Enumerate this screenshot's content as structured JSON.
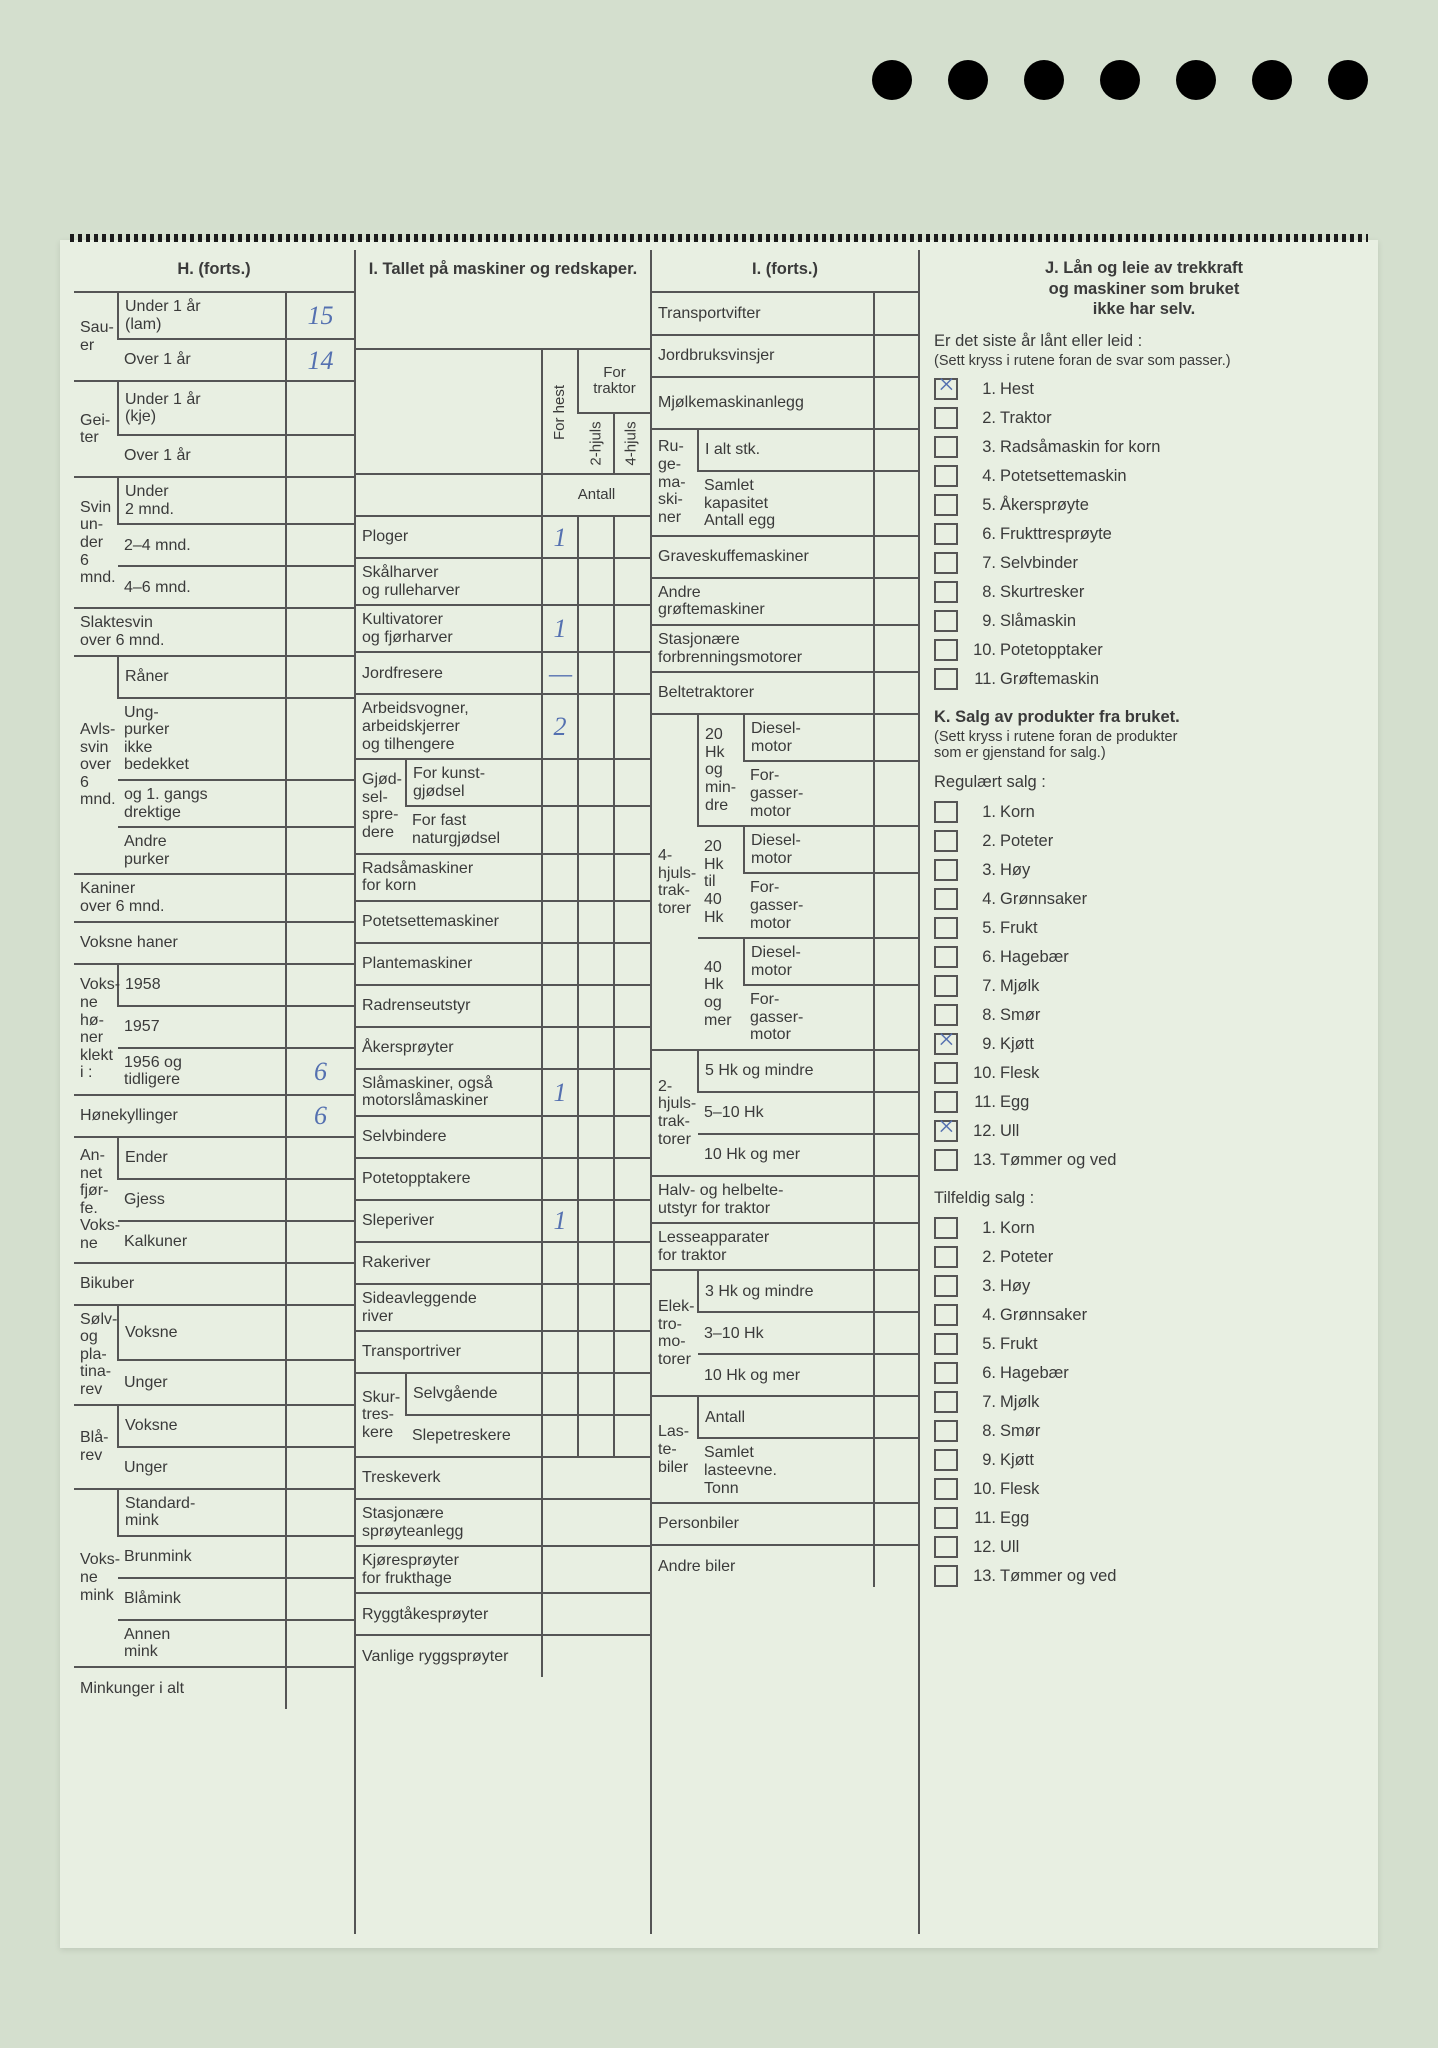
{
  "punch_holes": 7,
  "colors": {
    "page_bg": "#d4dfce",
    "sheet_bg": "#e8efe2",
    "line": "#555555",
    "text": "#3a3a3a",
    "handwriting": "#5470b0"
  },
  "H": {
    "title": "H. (forts.)",
    "sauer": {
      "label": "Sau-\ner",
      "under1": {
        "label": "Under 1 år\n(lam)",
        "val": "15"
      },
      "over1": {
        "label": "Over 1 år",
        "val": "14"
      }
    },
    "geiter": {
      "label": "Gei-\nter",
      "under1": "Under 1 år\n(kje)",
      "over1": "Over 1 år"
    },
    "svin": {
      "label": "Svin\nun-\nder\n6\nmnd.",
      "u2": "Under\n2 mnd.",
      "m24": "2–4 mnd.",
      "m46": "4–6 mnd."
    },
    "slaktesvin": "Slaktesvin\nover 6 mnd.",
    "avlssvin": {
      "label": "Avls-\nsvin\nover\n6\nmnd.",
      "raner": "Råner",
      "ung": "Ung-\npurker\nikke\nbedekket",
      "og1": "og 1. gangs\ndrektige",
      "andre": "Andre\npurker"
    },
    "kaniner": "Kaniner\nover 6 mnd.",
    "voksnehaner": "Voksne haner",
    "honer": {
      "label": "Voks-\nne\nhø-\nner\nklekt\ni :",
      "y1958": "1958",
      "y1957": "1957",
      "y1956": {
        "label": "1956 og\ntidligere",
        "val": "6"
      }
    },
    "honekyllinger": {
      "label": "Hønekyllinger",
      "val": "6"
    },
    "annet": {
      "label": "An-\nnet\nfjør-\nfe.\nVoks-\nne",
      "ender": "Ender",
      "gjess": "Gjess",
      "kalkuner": "Kalkuner"
    },
    "bikuber": "Bikuber",
    "solv": {
      "label": "Sølv-\nog\npla-\ntina-\nrev",
      "voksne": "Voksne",
      "unger": "Unger"
    },
    "bla": {
      "label": "Blå-\nrev",
      "voksne": "Voksne",
      "unger": "Unger"
    },
    "mink": {
      "label": "Voks-\nne\nmink",
      "standard": "Standard-\nmink",
      "brun": "Brunmink",
      "bla": "Blåmink",
      "annen": "Annen\nmink"
    },
    "minkunger": "Minkunger i alt"
  },
  "I": {
    "title": "I. Tallet på maskiner\nog redskaper.",
    "head": {
      "forhest": "For hest",
      "fortraktor": "For\ntraktor",
      "h2": "2-hjuls",
      "h4": "4-hjuls",
      "antall": "Antall"
    },
    "rows": {
      "ploger": {
        "label": "Ploger",
        "vals": [
          "1",
          "",
          ""
        ]
      },
      "skal": {
        "label": "Skålharver\nog rulleharver",
        "vals": [
          "",
          "",
          ""
        ]
      },
      "kult": {
        "label": "Kultivatorer\nog fjørharver",
        "vals": [
          "1",
          "",
          ""
        ]
      },
      "jord": {
        "label": "Jordfresere",
        "vals": [
          "—",
          "",
          ""
        ]
      },
      "arb": {
        "label": "Arbeidsvogner,\narbeidskjerrer\nog tilhengere",
        "vals": [
          "2",
          "",
          ""
        ]
      },
      "gjod": {
        "label": "Gjød-\nsel-\nspre-\ndere",
        "kunst": "For kunst-\ngjødsel",
        "natur": "For fast\nnaturgjødsel"
      },
      "radsa": "Radsåmaskiner\nfor korn",
      "potet": "Potetsettemaskiner",
      "plante": "Plantemaskiner",
      "radrens": "Radrenseutstyr",
      "akers": "Åkersprøyter",
      "slam": {
        "label": "Slåmaskiner, også\nmotorslåmaskiner",
        "vals": [
          "1",
          "",
          ""
        ]
      },
      "selvb": "Selvbindere",
      "potetopp": "Potetopptakere",
      "slepe": {
        "label": "Sleperiver",
        "vals": [
          "1",
          "",
          ""
        ]
      },
      "rake": "Rakeriver",
      "side": "Sideavleggende\nriver",
      "trans": "Transportriver",
      "skur": {
        "label": "Skur-\ntres-\nkere",
        "selv": "Selvgående",
        "slepe": "Slepetreskere"
      },
      "treske": "Treskeverk",
      "stas": "Stasjonære\nsprøyteanlegg",
      "kjore": "Kjøresprøyter\nfor frukthage",
      "rygg": "Ryggtåkesprøyter",
      "vanlig": "Vanlige ryggsprøyter"
    }
  },
  "I2": {
    "title": "I. (forts.)",
    "transportvifter": "Transportvifter",
    "jordbruk": "Jordbruksvinsjer",
    "mjolke": "Mjølkemaskinanlegg",
    "ruge": {
      "label": "Ru-\nge-\nma-\nski-\nner",
      "ialt": "I alt stk.",
      "samlet": "Samlet\nkapasitet\nAntall egg"
    },
    "graveskuffe": "Graveskuffemaskiner",
    "grofte": "Andre\ngrøftemaskiner",
    "forbrenning": "Stasjonære\nforbrenningsmotorer",
    "belte": "Beltetraktorer",
    "trak4": {
      "label": "4-\nhjuls-\ntrak-\ntorer",
      "r20m": "20\nHk\nog\nmin-\ndre",
      "r2040": "20\nHk\ntil\n40\nHk",
      "r40p": "40\nHk\nog\nmer",
      "diesel": "Diesel-\nmotor",
      "forgasser": "For-\ngasser-\nmotor"
    },
    "trak2": {
      "label": "2-\nhjuls-\ntrak-\ntorer",
      "r5m": "5 Hk og mindre",
      "r510": "5–10 Hk",
      "r10p": "10 Hk og mer"
    },
    "halvbelte": "Halv- og helbelte-\nutstyr for traktor",
    "lesse": "Lesseapparater\nfor traktor",
    "elektro": {
      "label": "Elek-\ntro-\nmo-\ntorer",
      "r3": "3 Hk og mindre",
      "r310": "3–10 Hk",
      "r10": "10 Hk og mer"
    },
    "laste": {
      "label": "Las-\nte-\nbiler",
      "antall": "Antall",
      "samlet": "Samlet\nlasteevne.\nTonn"
    },
    "person": "Personbiler",
    "andre": "Andre biler"
  },
  "J": {
    "title": "J. Lån og leie av trekkraft\nog maskiner som bruket\nikke har selv.",
    "intro": "Er det siste år lånt eller leid :",
    "help": "(Sett kryss i rutene foran de svar som passer.)",
    "items": [
      {
        "n": "1.",
        "t": "Hest",
        "x": true
      },
      {
        "n": "2.",
        "t": "Traktor"
      },
      {
        "n": "3.",
        "t": "Radsåmaskin for korn"
      },
      {
        "n": "4.",
        "t": "Potetsettemaskin"
      },
      {
        "n": "5.",
        "t": "Åkersprøyte"
      },
      {
        "n": "6.",
        "t": "Frukttresprøyte"
      },
      {
        "n": "7.",
        "t": "Selvbinder"
      },
      {
        "n": "8.",
        "t": "Skurtresker"
      },
      {
        "n": "9.",
        "t": "Slåmaskin"
      },
      {
        "n": "10.",
        "t": "Potetopptaker"
      },
      {
        "n": "11.",
        "t": "Grøftemaskin"
      }
    ]
  },
  "K": {
    "title": "K. Salg av produkter fra bruket.",
    "help": "(Sett kryss i rutene foran de produkter\nsom er gjenstand for salg.)",
    "reg_label": "Regulært salg :",
    "til_label": "Tilfeldig salg :",
    "reg": [
      {
        "n": "1.",
        "t": "Korn"
      },
      {
        "n": "2.",
        "t": "Poteter"
      },
      {
        "n": "3.",
        "t": "Høy"
      },
      {
        "n": "4.",
        "t": "Grønnsaker"
      },
      {
        "n": "5.",
        "t": "Frukt"
      },
      {
        "n": "6.",
        "t": "Hagebær"
      },
      {
        "n": "7.",
        "t": "Mjølk"
      },
      {
        "n": "8.",
        "t": "Smør"
      },
      {
        "n": "9.",
        "t": "Kjøtt",
        "x": true
      },
      {
        "n": "10.",
        "t": "Flesk"
      },
      {
        "n": "11.",
        "t": "Egg"
      },
      {
        "n": "12.",
        "t": "Ull",
        "x": true
      },
      {
        "n": "13.",
        "t": "Tømmer og ved"
      }
    ],
    "til": [
      {
        "n": "1.",
        "t": "Korn"
      },
      {
        "n": "2.",
        "t": "Poteter"
      },
      {
        "n": "3.",
        "t": "Høy"
      },
      {
        "n": "4.",
        "t": "Grønnsaker"
      },
      {
        "n": "5.",
        "t": "Frukt"
      },
      {
        "n": "6.",
        "t": "Hagebær"
      },
      {
        "n": "7.",
        "t": "Mjølk"
      },
      {
        "n": "8.",
        "t": "Smør"
      },
      {
        "n": "9.",
        "t": "Kjøtt"
      },
      {
        "n": "10.",
        "t": "Flesk"
      },
      {
        "n": "11.",
        "t": "Egg"
      },
      {
        "n": "12.",
        "t": "Ull"
      },
      {
        "n": "13.",
        "t": "Tømmer og ved"
      }
    ]
  }
}
